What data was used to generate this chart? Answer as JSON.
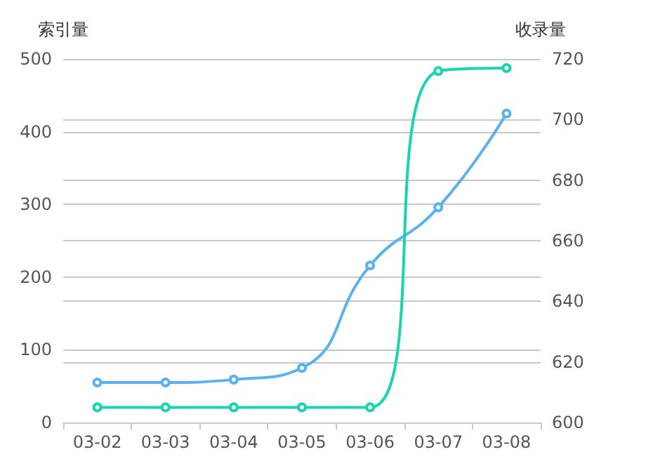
{
  "chart_data": {
    "type": "line",
    "ylabel": "索引量",
    "y2label": "收录量",
    "categories": [
      "03-02",
      "03-03",
      "03-04",
      "03-05",
      "03-06",
      "03-07",
      "03-08"
    ],
    "series": [
      {
        "color": "#5ab1ef",
        "values": [
          55,
          55,
          59,
          75,
          216,
          296,
          425
        ]
      },
      {
        "color": "#19d4ae",
        "axis": "y2",
        "values": [
          605,
          605,
          605,
          605,
          605,
          716,
          717
        ]
      }
    ],
    "ylim": [
      0,
      500
    ],
    "yticks": [
      0,
      100,
      200,
      300,
      400,
      500
    ],
    "y2lim": [
      600,
      720
    ],
    "y2ticks": [
      600,
      620,
      640,
      660,
      680,
      700,
      720
    ],
    "grid": "y",
    "marker": "circle",
    "line_style": "solid"
  }
}
